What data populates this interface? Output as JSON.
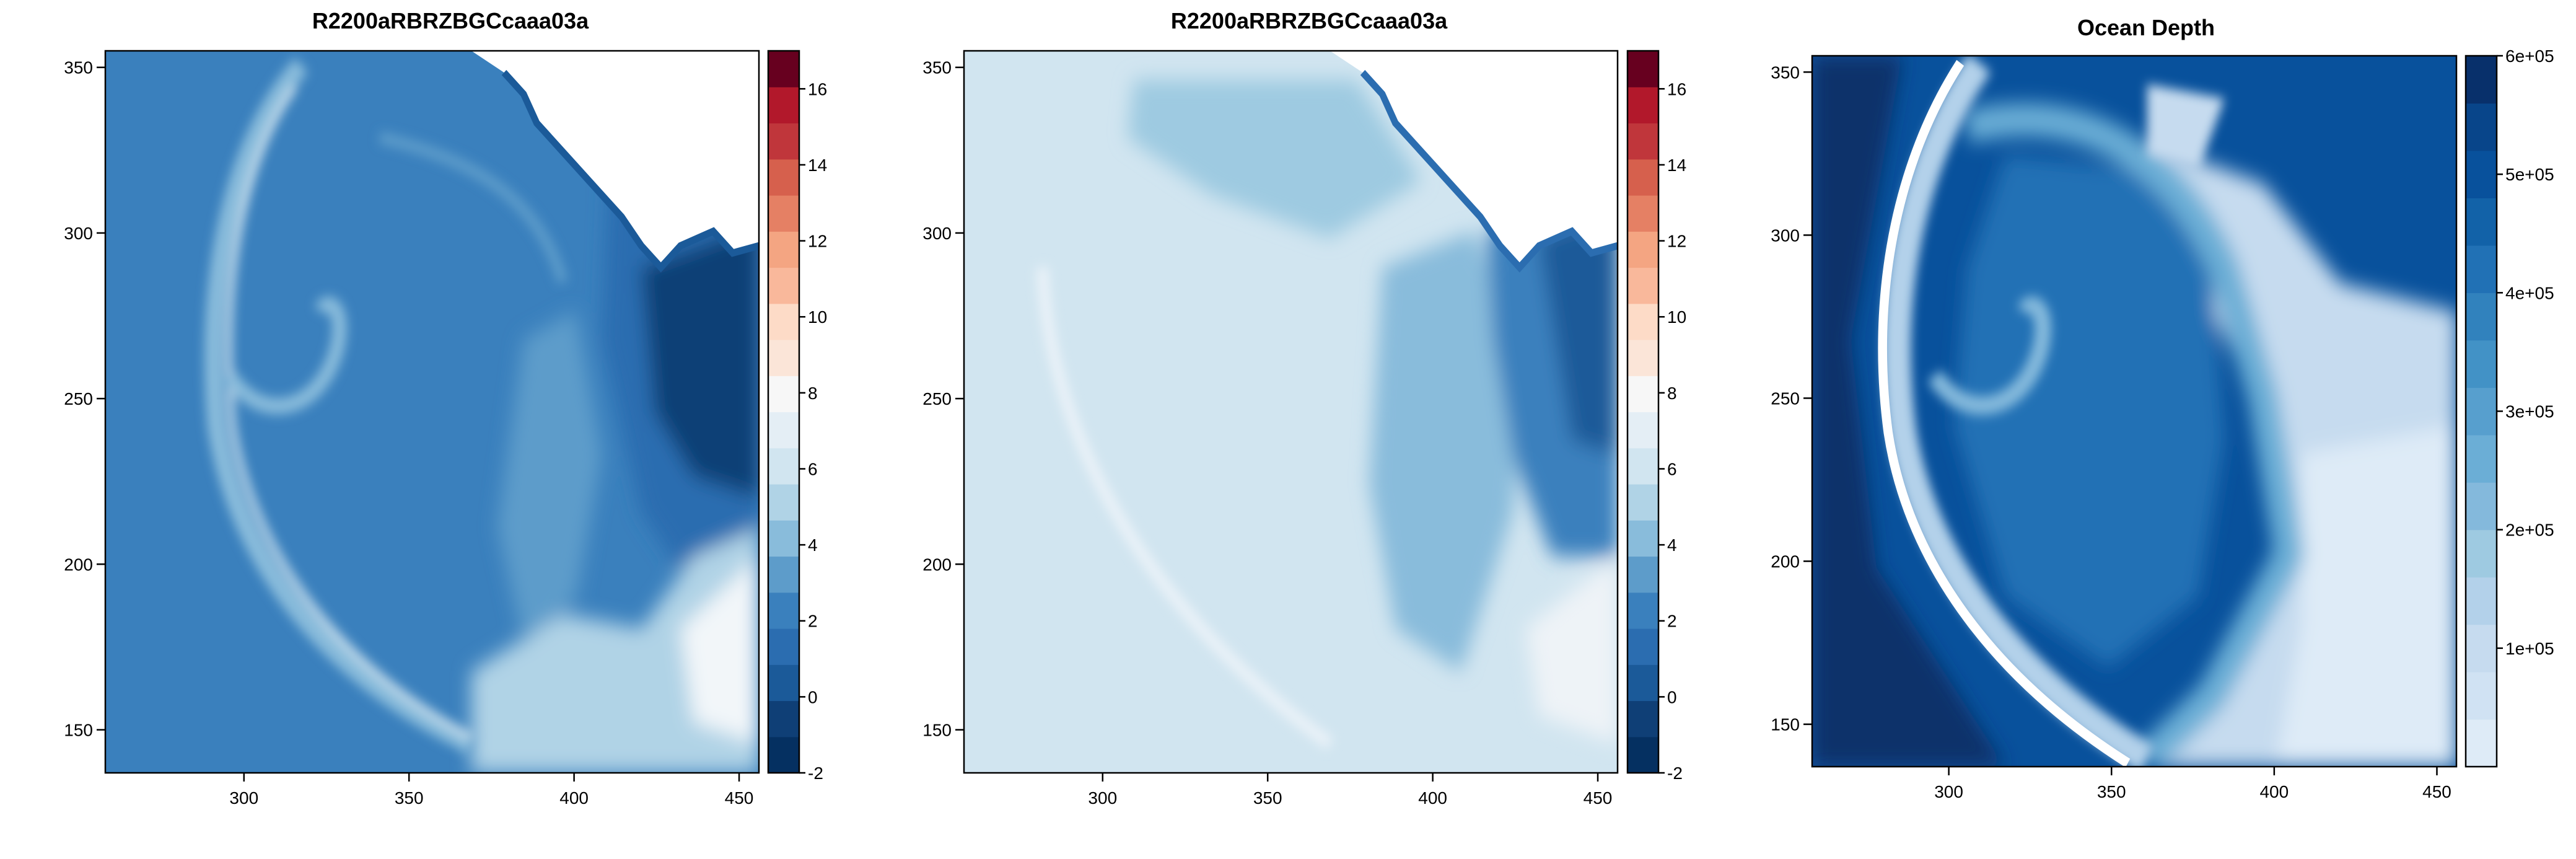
{
  "chart_data": [
    {
      "type": "heatmap",
      "title": "R2200aRBRZBGCcaaa03a",
      "xlabel": "",
      "ylabel": "",
      "xlim": [
        258,
        456
      ],
      "ylim": [
        137,
        355
      ],
      "x_ticks": [
        "300",
        "350",
        "400",
        "450"
      ],
      "y_ticks": [
        "150",
        "200",
        "250",
        "300",
        "350"
      ],
      "colorbar": {
        "range": [
          -2,
          17
        ],
        "labels": [
          "-2",
          "0",
          "2",
          "4",
          "6",
          "8",
          "10",
          "12",
          "14",
          "16"
        ],
        "colors": [
          "#053061",
          "#0f3f76",
          "#1b5a99",
          "#2b6db0",
          "#3a80bd",
          "#5d9cca",
          "#89bcdb",
          "#b0d3e6",
          "#d1e5f0",
          "#e4eef5",
          "#f7f7f7",
          "#fbe5d8",
          "#fddbc7",
          "#f9b89b",
          "#f4a582",
          "#e58064",
          "#d6604d",
          "#c0363b",
          "#b2182b",
          "#67001f"
        ]
      },
      "grid": false
    },
    {
      "type": "heatmap",
      "title": "R2200aRBRZBGCcaaa03a",
      "xlabel": "",
      "ylabel": "",
      "xlim": [
        258,
        456
      ],
      "ylim": [
        137,
        355
      ],
      "x_ticks": [
        "300",
        "350",
        "400",
        "450"
      ],
      "y_ticks": [
        "150",
        "200",
        "250",
        "300",
        "350"
      ],
      "colorbar": {
        "range": [
          -2,
          17
        ],
        "labels": [
          "-2",
          "0",
          "2",
          "4",
          "6",
          "8",
          "10",
          "12",
          "14",
          "16"
        ],
        "colors": [
          "#053061",
          "#0f3f76",
          "#1b5a99",
          "#2b6db0",
          "#3a80bd",
          "#5d9cca",
          "#89bcdb",
          "#b0d3e6",
          "#d1e5f0",
          "#e4eef5",
          "#f7f7f7",
          "#fbe5d8",
          "#fddbc7",
          "#f9b89b",
          "#f4a582",
          "#e58064",
          "#d6604d",
          "#c0363b",
          "#b2182b",
          "#67001f"
        ]
      },
      "grid": false
    },
    {
      "type": "heatmap",
      "title": "Ocean Depth",
      "xlabel": "",
      "ylabel": "",
      "xlim": [
        258,
        456
      ],
      "ylim": [
        137,
        355
      ],
      "x_ticks": [
        "300",
        "350",
        "400",
        "450"
      ],
      "y_ticks": [
        "150",
        "200",
        "250",
        "300",
        "350"
      ],
      "colorbar": {
        "range": [
          0,
          600000
        ],
        "labels": [
          "1e+05",
          "2e+05",
          "3e+05",
          "4e+05",
          "5e+05",
          "6e+05"
        ],
        "colors": [
          "#deebf7",
          "#d0e2f3",
          "#c6dbef",
          "#b3d1ea",
          "#9ecae1",
          "#84b9dc",
          "#6baed6",
          "#579fce",
          "#4292c6",
          "#3182bd",
          "#2171b5",
          "#1262a8",
          "#08519c",
          "#08458a",
          "#08306b"
        ]
      },
      "grid": false
    }
  ]
}
